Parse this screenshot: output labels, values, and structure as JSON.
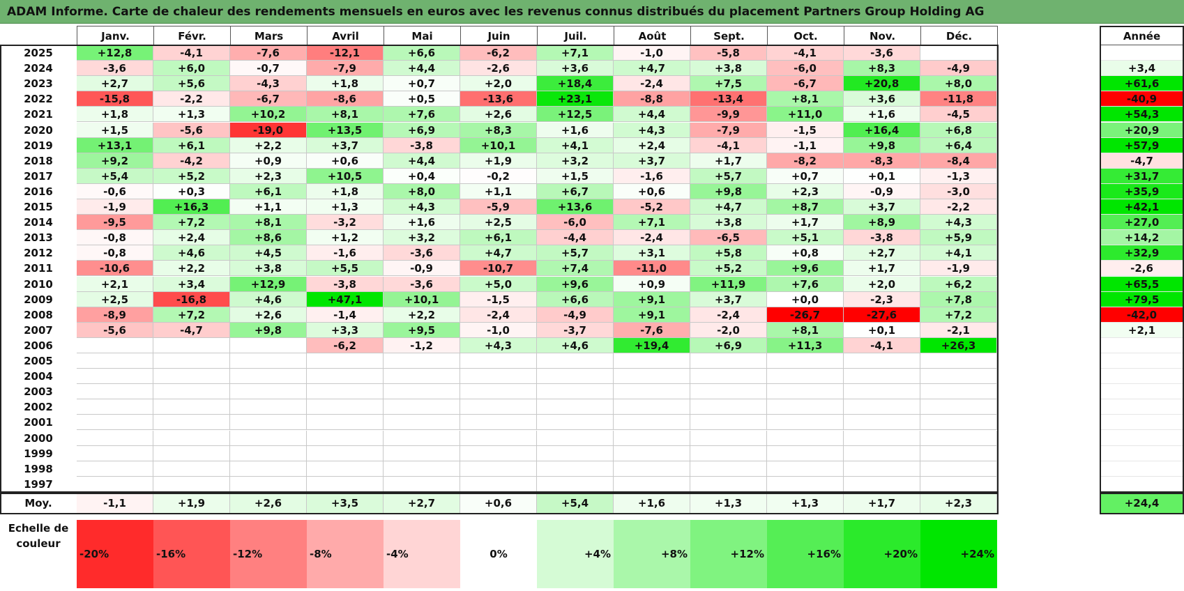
{
  "title": "ADAM Informe. Carte de chaleur des rendements mensuels en euros avec les revenus connus distribués du placement Partners Group Holding AG",
  "chart_data": {
    "type": "heatmap",
    "months": [
      "Janv.",
      "Févr.",
      "Mars",
      "Avril",
      "Mai",
      "Juin",
      "Juil.",
      "Août",
      "Sept.",
      "Oct.",
      "Nov.",
      "Déc."
    ],
    "year_header": "Année",
    "rows": [
      {
        "year": "2025",
        "values": [
          "+12,8",
          "-4,1",
          "-7,6",
          "-12,1",
          "+6,6",
          "-6,2",
          "+7,1",
          "-1,0",
          "-5,8",
          "-4,1",
          "-3,6",
          ""
        ],
        "annual": ""
      },
      {
        "year": "2024",
        "values": [
          "-3,6",
          "+6,0",
          "-0,7",
          "-7,9",
          "+4,4",
          "-2,6",
          "+3,6",
          "+4,7",
          "+3,8",
          "-6,0",
          "+8,3",
          "-4,9"
        ],
        "annual": "+3,4"
      },
      {
        "year": "2023",
        "values": [
          "+2,7",
          "+5,6",
          "-4,3",
          "+1,8",
          "+0,7",
          "+2,0",
          "+18,4",
          "-2,4",
          "+7,5",
          "-6,7",
          "+20,8",
          "+8,0"
        ],
        "annual": "+61,6"
      },
      {
        "year": "2022",
        "values": [
          "-15,8",
          "-2,2",
          "-6,7",
          "-8,6",
          "+0,5",
          "-13,6",
          "+23,1",
          "-8,8",
          "-13,4",
          "+8,1",
          "+3,6",
          "-11,8"
        ],
        "annual": "-40,9"
      },
      {
        "year": "2021",
        "values": [
          "+1,8",
          "+1,3",
          "+10,2",
          "+8,1",
          "+7,6",
          "+2,6",
          "+12,5",
          "+4,4",
          "-9,9",
          "+11,0",
          "+1,6",
          "-4,5"
        ],
        "annual": "+54,3"
      },
      {
        "year": "2020",
        "values": [
          "+1,5",
          "-5,6",
          "-19,0",
          "+13,5",
          "+6,9",
          "+8,3",
          "+1,6",
          "+4,3",
          "-7,9",
          "-1,5",
          "+16,4",
          "+6,8"
        ],
        "annual": "+20,9"
      },
      {
        "year": "2019",
        "values": [
          "+13,1",
          "+6,1",
          "+2,2",
          "+3,7",
          "-3,8",
          "+10,1",
          "+4,1",
          "+2,4",
          "-4,1",
          "-1,1",
          "+9,8",
          "+6,4"
        ],
        "annual": "+57,9"
      },
      {
        "year": "2018",
        "values": [
          "+9,2",
          "-4,2",
          "+0,9",
          "+0,6",
          "+4,4",
          "+1,9",
          "+3,2",
          "+3,7",
          "+1,7",
          "-8,2",
          "-8,3",
          "-8,4"
        ],
        "annual": "-4,7"
      },
      {
        "year": "2017",
        "values": [
          "+5,4",
          "+5,2",
          "+2,3",
          "+10,5",
          "+0,4",
          "-0,2",
          "+1,5",
          "-1,6",
          "+5,7",
          "+0,7",
          "+0,1",
          "-1,3"
        ],
        "annual": "+31,7"
      },
      {
        "year": "2016",
        "values": [
          "-0,6",
          "+0,3",
          "+6,1",
          "+1,8",
          "+8,0",
          "+1,1",
          "+6,7",
          "+0,6",
          "+9,8",
          "+2,3",
          "-0,9",
          "-3,0"
        ],
        "annual": "+35,9"
      },
      {
        "year": "2015",
        "values": [
          "-1,9",
          "+16,3",
          "+1,1",
          "+1,3",
          "+4,3",
          "-5,9",
          "+13,6",
          "-5,2",
          "+4,7",
          "+8,7",
          "+3,7",
          "-2,2"
        ],
        "annual": "+42,1"
      },
      {
        "year": "2014",
        "values": [
          "-9,5",
          "+7,2",
          "+8,1",
          "-3,2",
          "+1,6",
          "+2,5",
          "-6,0",
          "+7,1",
          "+3,8",
          "+1,7",
          "+8,9",
          "+4,3"
        ],
        "annual": "+27,0"
      },
      {
        "year": "2013",
        "values": [
          "-0,8",
          "+2,4",
          "+8,6",
          "+1,2",
          "+3,2",
          "+6,1",
          "-4,4",
          "-2,4",
          "-6,5",
          "+5,1",
          "-3,8",
          "+5,9"
        ],
        "annual": "+14,2"
      },
      {
        "year": "2012",
        "values": [
          "-0,8",
          "+4,6",
          "+4,5",
          "-1,6",
          "-3,6",
          "+4,7",
          "+5,7",
          "+3,1",
          "+5,8",
          "+0,8",
          "+2,7",
          "+4,1"
        ],
        "annual": "+32,9"
      },
      {
        "year": "2011",
        "values": [
          "-10,6",
          "+2,2",
          "+3,8",
          "+5,5",
          "-0,9",
          "-10,7",
          "+7,4",
          "-11,0",
          "+5,2",
          "+9,6",
          "+1,7",
          "-1,9"
        ],
        "annual": "-2,6"
      },
      {
        "year": "2010",
        "values": [
          "+2,1",
          "+3,4",
          "+12,9",
          "-3,8",
          "-3,6",
          "+5,0",
          "+9,6",
          "+0,9",
          "+11,9",
          "+7,6",
          "+2,0",
          "+6,2"
        ],
        "annual": "+65,5"
      },
      {
        "year": "2009",
        "values": [
          "+2,5",
          "-16,8",
          "+4,6",
          "+47,1",
          "+10,1",
          "-1,5",
          "+6,6",
          "+9,1",
          "+3,7",
          "+0,0",
          "-2,3",
          "+7,8"
        ],
        "annual": "+79,5"
      },
      {
        "year": "2008",
        "values": [
          "-8,9",
          "+7,2",
          "+2,6",
          "-1,4",
          "+2,2",
          "-2,4",
          "-4,9",
          "+9,1",
          "-2,4",
          "-26,7",
          "-27,6",
          "+7,2"
        ],
        "annual": "-42,0"
      },
      {
        "year": "2007",
        "values": [
          "-5,6",
          "-4,7",
          "+9,8",
          "+3,3",
          "+9,5",
          "-1,0",
          "-3,7",
          "-7,6",
          "-2,0",
          "+8,1",
          "+0,1",
          "-2,1"
        ],
        "annual": "+2,1"
      },
      {
        "year": "2006",
        "values": [
          "",
          "",
          "",
          "-6,2",
          "-1,2",
          "+4,3",
          "+4,6",
          "+19,4",
          "+6,9",
          "+11,3",
          "-4,1",
          "+26,3"
        ],
        "annual": ""
      },
      {
        "year": "2005",
        "values": [
          "",
          "",
          "",
          "",
          "",
          "",
          "",
          "",
          "",
          "",
          "",
          ""
        ],
        "annual": ""
      },
      {
        "year": "2004",
        "values": [
          "",
          "",
          "",
          "",
          "",
          "",
          "",
          "",
          "",
          "",
          "",
          ""
        ],
        "annual": ""
      },
      {
        "year": "2003",
        "values": [
          "",
          "",
          "",
          "",
          "",
          "",
          "",
          "",
          "",
          "",
          "",
          ""
        ],
        "annual": ""
      },
      {
        "year": "2002",
        "values": [
          "",
          "",
          "",
          "",
          "",
          "",
          "",
          "",
          "",
          "",
          "",
          ""
        ],
        "annual": ""
      },
      {
        "year": "2001",
        "values": [
          "",
          "",
          "",
          "",
          "",
          "",
          "",
          "",
          "",
          "",
          "",
          ""
        ],
        "annual": ""
      },
      {
        "year": "2000",
        "values": [
          "",
          "",
          "",
          "",
          "",
          "",
          "",
          "",
          "",
          "",
          "",
          ""
        ],
        "annual": ""
      },
      {
        "year": "1999",
        "values": [
          "",
          "",
          "",
          "",
          "",
          "",
          "",
          "",
          "",
          "",
          "",
          ""
        ],
        "annual": ""
      },
      {
        "year": "1998",
        "values": [
          "",
          "",
          "",
          "",
          "",
          "",
          "",
          "",
          "",
          "",
          "",
          ""
        ],
        "annual": ""
      },
      {
        "year": "1997",
        "values": [
          "",
          "",
          "",
          "",
          "",
          "",
          "",
          "",
          "",
          "",
          "",
          ""
        ],
        "annual": ""
      }
    ],
    "average": {
      "label": "Moy.",
      "values": [
        "-1,1",
        "+1,9",
        "+2,6",
        "+3,5",
        "+2,7",
        "+0,6",
        "+5,4",
        "+1,6",
        "+1,3",
        "+1,3",
        "+1,7",
        "+2,3"
      ],
      "annual": "+24,4"
    },
    "scale": {
      "label_line1": "Echelle de",
      "label_line2": "couleur",
      "steps": [
        {
          "label": "-20%",
          "value": -20
        },
        {
          "label": "-16%",
          "value": -16
        },
        {
          "label": "-12%",
          "value": -12
        },
        {
          "label": "-8%",
          "value": -8
        },
        {
          "label": "-4%",
          "value": -4
        },
        {
          "label": "0%",
          "value": 0
        },
        {
          "label": "+4%",
          "value": 4
        },
        {
          "label": "+8%",
          "value": 8
        },
        {
          "label": "+12%",
          "value": 12
        },
        {
          "label": "+16%",
          "value": 16
        },
        {
          "label": "+20%",
          "value": 20
        },
        {
          "label": "+24%",
          "value": 24
        }
      ]
    },
    "colors": {
      "negative": "#ff0000",
      "neutral": "#ffffff",
      "positive": "#00e600"
    }
  }
}
